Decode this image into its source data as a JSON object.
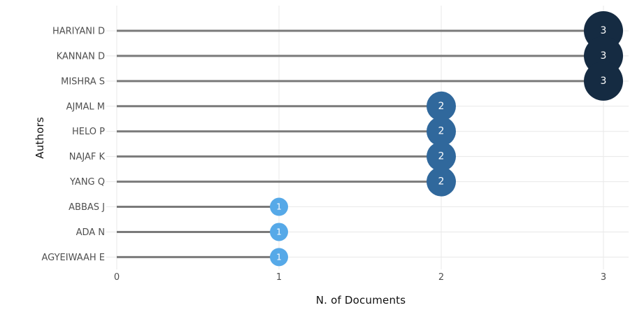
{
  "chart_data": {
    "type": "scatter",
    "variant": "horizontal-lollipop",
    "title": "",
    "xlabel": "N. of Documents",
    "ylabel": "Authors",
    "categories": [
      "HARIYANI D",
      "KANNAN D",
      "MISHRA S",
      "AJMAL M",
      "HELO P",
      "NAJAF K",
      "YANG Q",
      "ABBAS J",
      "ADA N",
      "AGYEIWAAH E"
    ],
    "values": [
      3,
      3,
      3,
      2,
      2,
      2,
      2,
      1,
      1,
      1
    ],
    "point_labels": [
      "3",
      "3",
      "3",
      "2",
      "2",
      "2",
      "2",
      "1",
      "1",
      "1"
    ],
    "xticks": [
      "0",
      "1",
      "2",
      "3"
    ],
    "xlim": [
      0,
      3.17
    ],
    "grid": true,
    "legend": false,
    "background": "#ffffff",
    "stem_color": "#7a7a7a",
    "gridline_color": "#e8e8e8",
    "tick_line_color": "#e0e0e0",
    "marker_colors_by_value": {
      "1": "#56a9e8",
      "2": "#30689c",
      "3": "#152b42"
    },
    "marker_radius_by_value": {
      "1": 13,
      "2": 21,
      "3": 28
    },
    "text_colors": {
      "tick_label": "#4f4f4f",
      "axis_title": "#111111",
      "point_label": "#ffffff"
    }
  }
}
